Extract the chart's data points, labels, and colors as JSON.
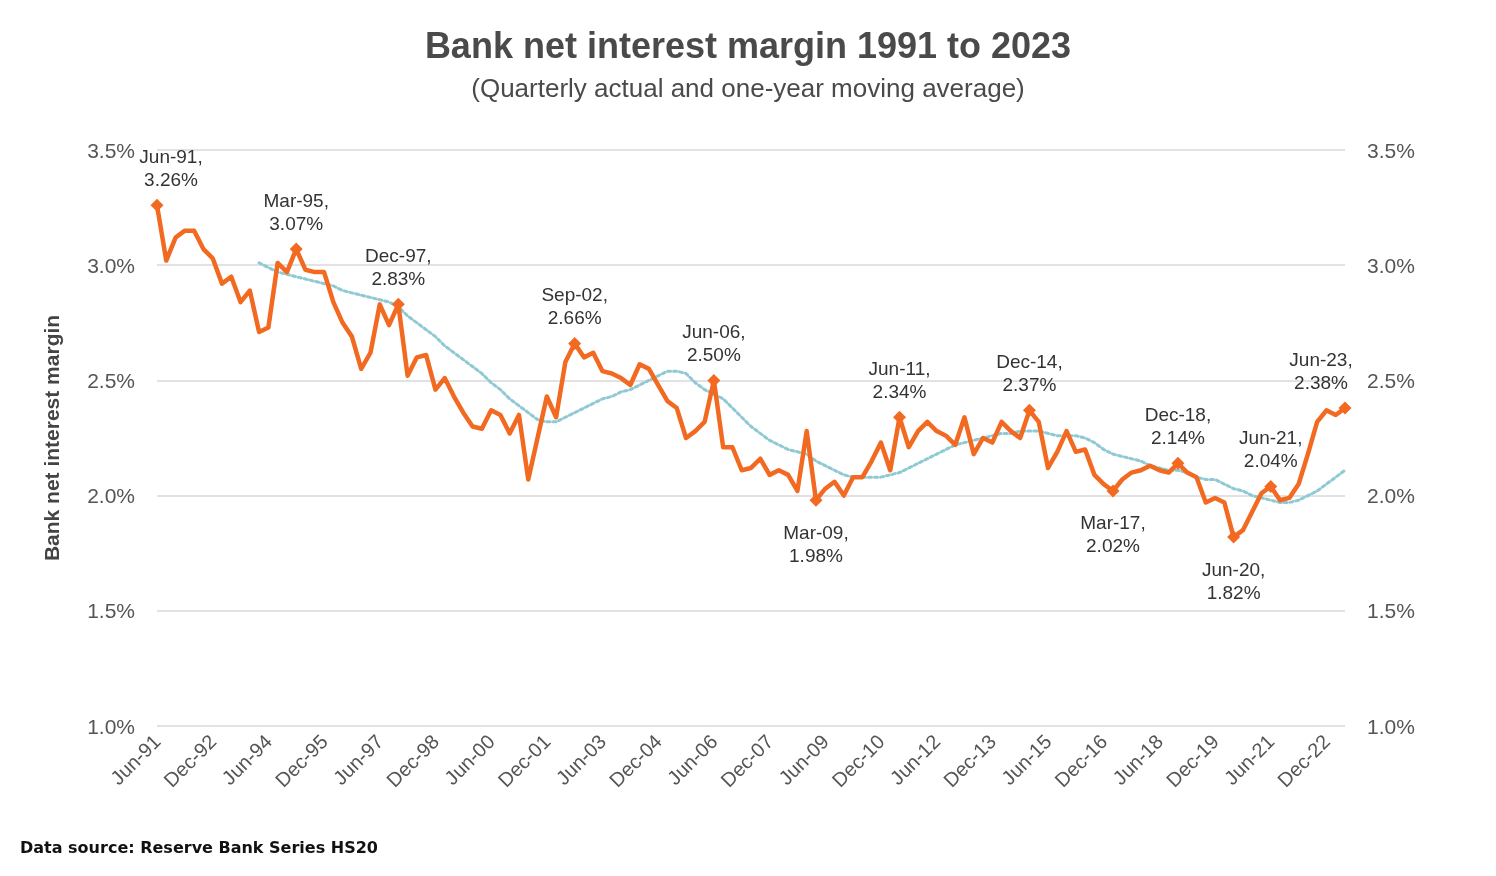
{
  "chart_data": {
    "type": "line",
    "title": "Bank net interest margin 1991 to 2023",
    "subtitle": "(Quarterly actual and one-year moving average)",
    "ylabel": "Bank net interest margin",
    "annotations": [
      "Data source:  Reserve Bank Series HS20"
    ],
    "categories": [
      "Jun-91",
      null,
      null,
      null,
      null,
      null,
      "Dec-92",
      null,
      null,
      null,
      null,
      null,
      "Jun-94",
      null,
      null,
      null,
      null,
      null,
      "Dec-95",
      null,
      null,
      null,
      null,
      null,
      "Jun-97",
      null,
      null,
      null,
      null,
      null,
      "Dec-98",
      null,
      null,
      null,
      null,
      null,
      "Jun-00",
      null,
      null,
      null,
      null,
      null,
      "Dec-01",
      null,
      null,
      null,
      null,
      null,
      "Jun-03",
      null,
      null,
      null,
      null,
      null,
      "Dec-04",
      null,
      null,
      null,
      null,
      null,
      "Jun-06",
      null,
      null,
      null,
      null,
      null,
      "Dec-07",
      null,
      null,
      null,
      null,
      null,
      "Jun-09",
      null,
      null,
      null,
      null,
      null,
      "Dec-10",
      null,
      null,
      null,
      null,
      null,
      "Jun-12",
      null,
      null,
      null,
      null,
      null,
      "Dec-13",
      null,
      null,
      null,
      null,
      null,
      "Jun-15",
      null,
      null,
      null,
      null,
      null,
      "Dec-16",
      null,
      null,
      null,
      null,
      null,
      "Jun-18",
      null,
      null,
      null,
      null,
      null,
      "Dec-19",
      null,
      null,
      null,
      null,
      null,
      "Jun-21",
      null,
      null,
      null,
      null,
      null,
      "Dec-22",
      null,
      null
    ],
    "series": [
      {
        "color": "#f26a21",
        "line_style": "solid",
        "values": [
          3.26,
          3.02,
          3.12,
          3.15,
          3.15,
          3.07,
          3.03,
          2.92,
          2.95,
          2.84,
          2.89,
          2.71,
          2.73,
          3.01,
          2.97,
          3.07,
          2.98,
          2.97,
          2.97,
          2.84,
          2.75,
          2.69,
          2.55,
          2.62,
          2.83,
          2.74,
          2.83,
          2.52,
          2.6,
          2.61,
          2.46,
          2.51,
          2.43,
          2.36,
          2.3,
          2.29,
          2.37,
          2.35,
          2.27,
          2.35,
          2.07,
          2.25,
          2.43,
          2.34,
          2.58,
          2.66,
          2.6,
          2.62,
          2.54,
          2.53,
          2.51,
          2.48,
          2.57,
          2.55,
          2.48,
          2.41,
          2.38,
          2.25,
          2.28,
          2.32,
          2.5,
          2.21,
          2.21,
          2.11,
          2.12,
          2.16,
          2.09,
          2.11,
          2.09,
          2.02,
          2.28,
          1.98,
          2.03,
          2.06,
          2.0,
          2.08,
          2.08,
          2.15,
          2.23,
          2.11,
          2.34,
          2.21,
          2.28,
          2.32,
          2.28,
          2.26,
          2.22,
          2.34,
          2.18,
          2.25,
          2.23,
          2.32,
          2.28,
          2.25,
          2.37,
          2.32,
          2.12,
          2.19,
          2.28,
          2.19,
          2.2,
          2.09,
          2.05,
          2.02,
          2.07,
          2.1,
          2.11,
          2.13,
          2.11,
          2.1,
          2.14,
          2.1,
          2.08,
          1.97,
          1.99,
          1.97,
          1.82,
          1.85,
          1.93,
          2.01,
          2.04,
          1.98,
          1.99,
          2.05,
          2.18,
          2.32,
          2.37,
          2.35,
          2.38
        ],
        "value_labels": [
          "Jun-91,\n3.26%",
          null,
          null,
          null,
          null,
          null,
          null,
          null,
          null,
          null,
          null,
          null,
          null,
          null,
          null,
          "Mar-95,\n3.07%",
          null,
          null,
          null,
          null,
          null,
          null,
          null,
          null,
          null,
          null,
          "Dec-97,\n2.83%",
          null,
          null,
          null,
          null,
          null,
          null,
          null,
          null,
          null,
          null,
          null,
          null,
          null,
          null,
          null,
          null,
          null,
          null,
          "Sep-02,\n2.66%",
          null,
          null,
          null,
          null,
          null,
          null,
          null,
          null,
          null,
          null,
          null,
          null,
          null,
          null,
          "Jun-06,\n2.50%",
          null,
          null,
          null,
          null,
          null,
          null,
          null,
          null,
          null,
          null,
          "Mar-09,\n1.98%",
          null,
          null,
          null,
          null,
          null,
          null,
          null,
          null,
          "Jun-11,\n2.34%",
          null,
          null,
          null,
          null,
          null,
          null,
          null,
          null,
          null,
          null,
          null,
          null,
          null,
          "Dec-14,\n2.37%",
          null,
          null,
          null,
          null,
          null,
          null,
          null,
          null,
          "Mar-17,\n2.02%",
          null,
          null,
          null,
          null,
          null,
          null,
          "Dec-18,\n2.14%",
          null,
          null,
          null,
          null,
          null,
          "Jun-20,\n1.82%",
          null,
          null,
          null,
          "Jun-21,\n2.04%",
          null,
          null,
          null,
          null,
          null,
          null,
          null,
          "Jun-23,\n2.38%"
        ]
      },
      {
        "color": "#8fc9d3",
        "line_style": "dotted",
        "marker": "none",
        "values": [
          null,
          null,
          null,
          null,
          null,
          null,
          null,
          null,
          null,
          null,
          null,
          3.01,
          2.99,
          2.97,
          2.96,
          2.95,
          2.94,
          2.93,
          2.92,
          2.91,
          2.89,
          2.88,
          2.87,
          2.86,
          2.85,
          2.84,
          2.82,
          2.78,
          2.75,
          2.72,
          2.69,
          2.65,
          2.62,
          2.59,
          2.56,
          2.53,
          2.49,
          2.46,
          2.42,
          2.39,
          2.36,
          2.33,
          2.32,
          2.32,
          2.34,
          2.36,
          2.38,
          2.4,
          2.42,
          2.43,
          2.45,
          2.46,
          2.48,
          2.5,
          2.52,
          2.54,
          2.54,
          2.53,
          2.49,
          2.46,
          2.44,
          2.42,
          2.38,
          2.34,
          2.3,
          2.27,
          2.24,
          2.22,
          2.2,
          2.19,
          2.18,
          2.15,
          2.13,
          2.11,
          2.09,
          2.08,
          2.08,
          2.08,
          2.08,
          2.09,
          2.1,
          2.12,
          2.14,
          2.16,
          2.18,
          2.2,
          2.22,
          2.23,
          2.24,
          2.25,
          2.26,
          2.27,
          2.27,
          2.28,
          2.28,
          2.28,
          2.27,
          2.26,
          2.26,
          2.26,
          2.25,
          2.23,
          2.2,
          2.18,
          2.17,
          2.16,
          2.15,
          2.13,
          2.12,
          2.11,
          2.11,
          2.1,
          2.08,
          2.07,
          2.07,
          2.05,
          2.03,
          2.02,
          2.0,
          1.99,
          1.98,
          1.97,
          1.97,
          1.98,
          2.0,
          2.02,
          2.05,
          2.08,
          2.11
        ]
      }
    ],
    "ylim": [
      1.0,
      3.5
    ],
    "yticks": [
      {
        "value": 1.0,
        "label": "1.0%"
      },
      {
        "value": 1.5,
        "label": "1.5%"
      },
      {
        "value": 2.0,
        "label": "2.0%"
      },
      {
        "value": 2.5,
        "label": "2.5%"
      },
      {
        "value": 3.0,
        "label": "3.0%"
      },
      {
        "value": 3.5,
        "label": "3.5%"
      }
    ],
    "y2lim": [
      1.0,
      3.5
    ],
    "y2ticks": [
      {
        "value": 1.0,
        "label": "1.0%"
      },
      {
        "value": 1.5,
        "label": "1.5%"
      },
      {
        "value": 2.0,
        "label": "2.0%"
      },
      {
        "value": 2.5,
        "label": "2.5%"
      },
      {
        "value": 3.0,
        "label": "3.0%"
      },
      {
        "value": 3.5,
        "label": "3.5%"
      }
    ],
    "grid": "y"
  }
}
